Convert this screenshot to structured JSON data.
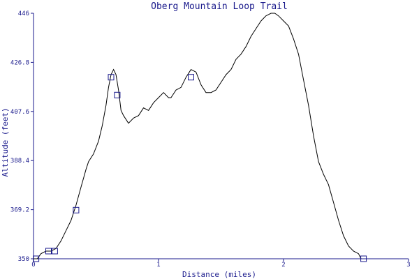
{
  "chart_data": {
    "type": "line",
    "title": "Oberg Mountain Loop Trail",
    "xlabel": "Distance (miles)",
    "ylabel": "Altitude (feet)",
    "xlim": [
      0,
      3
    ],
    "ylim": [
      350,
      446
    ],
    "x_ticks": [
      0,
      1,
      2,
      3
    ],
    "x_tick_labels": [
      "0",
      "1",
      "2",
      "3"
    ],
    "y_ticks": [
      350,
      369.2,
      388.4,
      407.6,
      426.8,
      446
    ],
    "y_tick_labels": [
      "350",
      "369.2",
      "388.4",
      "407.6",
      "426.8",
      "446"
    ],
    "grid": false,
    "colors": {
      "line": "#000000",
      "marker": "#1a1a8c",
      "axis": "#1a1a8c",
      "text": "#1a1a8c"
    },
    "series": [
      {
        "x": [
          0.0,
          0.03,
          0.06,
          0.1,
          0.14,
          0.18,
          0.22,
          0.26,
          0.3,
          0.34,
          0.38,
          0.42,
          0.44,
          0.48,
          0.52,
          0.55,
          0.58,
          0.6,
          0.62,
          0.64,
          0.66,
          0.68,
          0.7,
          0.72,
          0.76,
          0.8,
          0.84,
          0.88,
          0.92,
          0.96,
          1.0,
          1.04,
          1.08,
          1.1,
          1.14,
          1.18,
          1.22,
          1.26,
          1.3,
          1.34,
          1.38,
          1.42,
          1.46,
          1.5,
          1.54,
          1.58,
          1.62,
          1.66,
          1.7,
          1.74,
          1.78,
          1.82,
          1.86,
          1.9,
          1.93,
          1.96,
          2.0,
          2.04,
          2.08,
          2.12,
          2.16,
          2.2,
          2.24,
          2.28,
          2.32,
          2.36,
          2.4,
          2.44,
          2.48,
          2.52,
          2.56,
          2.6,
          2.62
        ],
        "values": [
          350,
          350,
          352,
          353,
          353,
          354,
          357,
          361,
          365,
          371,
          378,
          385,
          388,
          391,
          396,
          402,
          410,
          417,
          422,
          424,
          422,
          416,
          408,
          406,
          403,
          405,
          406,
          409,
          408,
          411,
          413,
          415,
          413,
          413,
          416,
          417,
          421,
          424,
          423,
          418,
          415,
          415,
          416,
          419,
          422,
          424,
          428,
          430,
          433,
          437,
          440,
          443,
          445,
          446,
          446,
          445,
          443,
          441,
          436,
          430,
          420,
          410,
          398,
          388,
          383,
          379,
          372,
          365,
          359,
          355,
          353,
          352,
          350
        ]
      }
    ],
    "markers": [
      {
        "x": 0.02,
        "y": 350
      },
      {
        "x": 0.12,
        "y": 353
      },
      {
        "x": 0.17,
        "y": 353
      },
      {
        "x": 0.34,
        "y": 369
      },
      {
        "x": 0.62,
        "y": 421
      },
      {
        "x": 0.67,
        "y": 414
      },
      {
        "x": 1.26,
        "y": 421
      },
      {
        "x": 2.64,
        "y": 350
      }
    ]
  }
}
